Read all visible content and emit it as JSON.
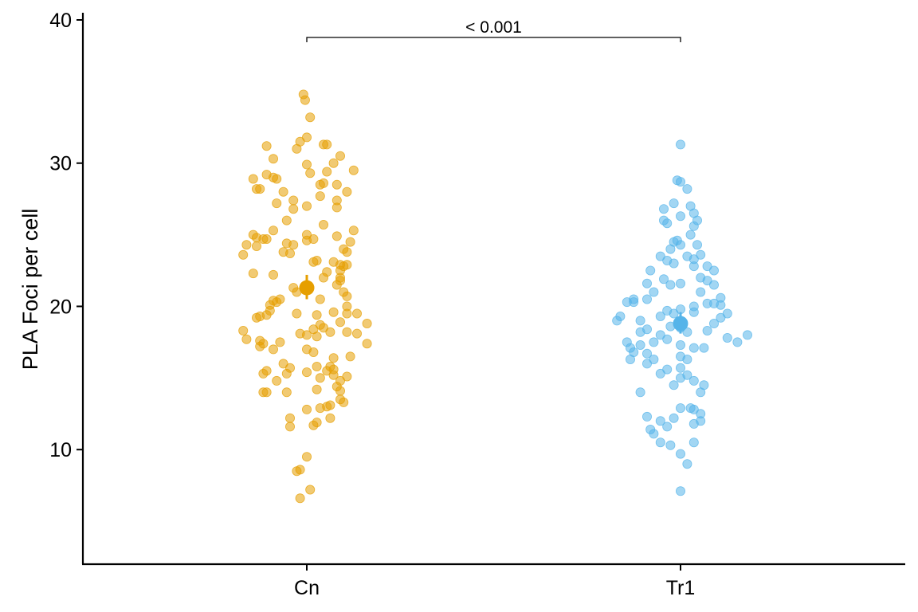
{
  "chart_data": {
    "type": "scatter",
    "subtype": "jitter-strip",
    "title": "",
    "xlabel": "",
    "ylabel": "PLA Foci per cell",
    "ylim": [
      2,
      40.5
    ],
    "yticks": [
      10,
      20,
      30,
      40
    ],
    "grid": false,
    "legend": "none",
    "categories": [
      "Cn",
      "Tr1"
    ],
    "series": [
      {
        "category": "Cn",
        "color": "#E69F00",
        "mean": 21.3,
        "ci": [
          20.5,
          22.2
        ],
        "points": [
          [
            -0.01,
            34.8
          ],
          [
            -0.005,
            34.4
          ],
          [
            0.01,
            33.2
          ],
          [
            -0.02,
            31.5
          ],
          [
            -0.03,
            31.0
          ],
          [
            0.0,
            31.8
          ],
          [
            -0.12,
            31.2
          ],
          [
            0.05,
            31.3
          ],
          [
            0.06,
            31.3
          ],
          [
            0.1,
            30.5
          ],
          [
            -0.1,
            30.3
          ],
          [
            0.08,
            30.0
          ],
          [
            0.14,
            29.5
          ],
          [
            0.0,
            29.9
          ],
          [
            0.01,
            29.3
          ],
          [
            -0.12,
            29.2
          ],
          [
            -0.09,
            28.9
          ],
          [
            -0.16,
            28.9
          ],
          [
            -0.1,
            29.0
          ],
          [
            0.06,
            29.4
          ],
          [
            0.05,
            28.6
          ],
          [
            0.04,
            28.5
          ],
          [
            0.09,
            28.5
          ],
          [
            -0.15,
            28.2
          ],
          [
            -0.14,
            28.2
          ],
          [
            -0.07,
            28.0
          ],
          [
            0.12,
            28.0
          ],
          [
            -0.04,
            27.4
          ],
          [
            0.04,
            27.7
          ],
          [
            0.09,
            27.4
          ],
          [
            -0.09,
            27.2
          ],
          [
            0.0,
            27.0
          ],
          [
            0.09,
            26.9
          ],
          [
            -0.04,
            26.8
          ],
          [
            -0.06,
            26.0
          ],
          [
            0.05,
            25.7
          ],
          [
            0.14,
            25.3
          ],
          [
            -0.1,
            25.3
          ],
          [
            0.0,
            25.0
          ],
          [
            -0.16,
            25.0
          ],
          [
            0.09,
            24.9
          ],
          [
            -0.15,
            24.8
          ],
          [
            -0.12,
            24.7
          ],
          [
            -0.13,
            24.7
          ],
          [
            0.02,
            24.7
          ],
          [
            0.0,
            24.6
          ],
          [
            -0.06,
            24.4
          ],
          [
            -0.04,
            24.3
          ],
          [
            0.13,
            24.5
          ],
          [
            -0.18,
            24.3
          ],
          [
            -0.15,
            24.2
          ],
          [
            0.11,
            24.0
          ],
          [
            0.12,
            23.8
          ],
          [
            -0.05,
            23.7
          ],
          [
            -0.07,
            23.8
          ],
          [
            -0.19,
            23.6
          ],
          [
            0.03,
            23.2
          ],
          [
            0.08,
            23.1
          ],
          [
            0.02,
            23.1
          ],
          [
            0.12,
            22.9
          ],
          [
            0.1,
            22.5
          ],
          [
            0.11,
            22.8
          ],
          [
            0.1,
            22.9
          ],
          [
            0.06,
            22.4
          ],
          [
            0.1,
            22.0
          ],
          [
            -0.16,
            22.3
          ],
          [
            -0.1,
            22.2
          ],
          [
            0.05,
            22.0
          ],
          [
            0.09,
            21.5
          ],
          [
            0.1,
            21.8
          ],
          [
            0.0,
            21.5
          ],
          [
            -0.04,
            21.3
          ],
          [
            -0.03,
            21.0
          ],
          [
            0.0,
            21.2
          ],
          [
            0.11,
            21.0
          ],
          [
            0.12,
            20.7
          ],
          [
            -0.08,
            20.5
          ],
          [
            -0.1,
            20.4
          ],
          [
            -0.09,
            20.3
          ],
          [
            0.04,
            20.5
          ],
          [
            -0.11,
            20.1
          ],
          [
            0.12,
            20.0
          ],
          [
            -0.11,
            19.7
          ],
          [
            0.12,
            19.5
          ],
          [
            0.15,
            19.5
          ],
          [
            0.08,
            19.6
          ],
          [
            0.03,
            19.4
          ],
          [
            -0.03,
            19.5
          ],
          [
            -0.14,
            19.3
          ],
          [
            -0.15,
            19.2
          ],
          [
            -0.12,
            19.4
          ],
          [
            0.18,
            18.8
          ],
          [
            0.1,
            18.9
          ],
          [
            0.04,
            18.7
          ],
          [
            0.05,
            18.5
          ],
          [
            0.02,
            18.4
          ],
          [
            0.12,
            18.2
          ],
          [
            0.15,
            18.1
          ],
          [
            0.07,
            18.2
          ],
          [
            -0.02,
            18.1
          ],
          [
            0.03,
            17.9
          ],
          [
            0.0,
            18.0
          ],
          [
            -0.19,
            18.3
          ],
          [
            -0.18,
            17.7
          ],
          [
            -0.14,
            17.6
          ],
          [
            -0.13,
            17.4
          ],
          [
            -0.08,
            17.5
          ],
          [
            -0.14,
            17.2
          ],
          [
            -0.1,
            17.0
          ],
          [
            0.18,
            17.4
          ],
          [
            0.0,
            17.0
          ],
          [
            0.02,
            16.8
          ],
          [
            0.13,
            16.5
          ],
          [
            0.08,
            16.4
          ],
          [
            -0.07,
            16.0
          ],
          [
            0.03,
            15.8
          ],
          [
            -0.05,
            15.7
          ],
          [
            0.07,
            15.8
          ],
          [
            0.08,
            15.6
          ],
          [
            0.06,
            15.5
          ],
          [
            -0.12,
            15.5
          ],
          [
            -0.13,
            15.3
          ],
          [
            -0.06,
            15.3
          ],
          [
            0.0,
            15.4
          ],
          [
            0.04,
            15.0
          ],
          [
            0.08,
            15.2
          ],
          [
            0.12,
            15.1
          ],
          [
            0.1,
            14.8
          ],
          [
            -0.09,
            14.8
          ],
          [
            0.09,
            14.4
          ],
          [
            0.1,
            14.1
          ],
          [
            0.03,
            14.2
          ],
          [
            -0.13,
            14.0
          ],
          [
            -0.12,
            14.0
          ],
          [
            -0.06,
            14.0
          ],
          [
            0.1,
            13.5
          ],
          [
            0.11,
            13.3
          ],
          [
            0.06,
            13.0
          ],
          [
            0.07,
            13.1
          ],
          [
            0.04,
            12.9
          ],
          [
            0.0,
            12.8
          ],
          [
            -0.05,
            12.2
          ],
          [
            0.07,
            12.2
          ],
          [
            0.03,
            11.9
          ],
          [
            0.02,
            11.7
          ],
          [
            -0.05,
            11.6
          ],
          [
            0.0,
            9.5
          ],
          [
            -0.02,
            8.6
          ],
          [
            -0.03,
            8.5
          ],
          [
            0.01,
            7.2
          ],
          [
            -0.02,
            6.6
          ]
        ]
      },
      {
        "category": "Tr1",
        "color": "#56B4E9",
        "mean": 18.8,
        "ci": [
          18.1,
          19.6
        ],
        "points": [
          [
            0.0,
            31.3
          ],
          [
            -0.01,
            28.8
          ],
          [
            0.0,
            28.7
          ],
          [
            0.02,
            28.2
          ],
          [
            -0.02,
            27.2
          ],
          [
            0.03,
            27.0
          ],
          [
            -0.05,
            26.8
          ],
          [
            0.04,
            26.5
          ],
          [
            0.0,
            26.3
          ],
          [
            -0.05,
            26.0
          ],
          [
            0.05,
            26.0
          ],
          [
            0.04,
            25.6
          ],
          [
            -0.04,
            25.8
          ],
          [
            0.03,
            25.0
          ],
          [
            -0.02,
            24.5
          ],
          [
            -0.01,
            24.6
          ],
          [
            0.05,
            24.3
          ],
          [
            0.0,
            24.3
          ],
          [
            -0.03,
            24.0
          ],
          [
            0.06,
            23.6
          ],
          [
            -0.06,
            23.5
          ],
          [
            0.02,
            23.5
          ],
          [
            0.04,
            23.3
          ],
          [
            -0.04,
            23.2
          ],
          [
            -0.02,
            23.0
          ],
          [
            0.08,
            22.8
          ],
          [
            0.04,
            22.8
          ],
          [
            0.1,
            22.5
          ],
          [
            -0.09,
            22.5
          ],
          [
            0.06,
            22.0
          ],
          [
            0.08,
            21.8
          ],
          [
            -0.05,
            21.9
          ],
          [
            -0.1,
            21.6
          ],
          [
            0.0,
            21.6
          ],
          [
            0.1,
            21.5
          ],
          [
            -0.03,
            21.5
          ],
          [
            0.06,
            21.0
          ],
          [
            -0.08,
            21.0
          ],
          [
            0.12,
            20.6
          ],
          [
            -0.1,
            20.5
          ],
          [
            -0.14,
            20.5
          ],
          [
            -0.16,
            20.3
          ],
          [
            -0.14,
            20.3
          ],
          [
            0.08,
            20.2
          ],
          [
            0.1,
            20.2
          ],
          [
            0.12,
            20.1
          ],
          [
            0.04,
            20.0
          ],
          [
            0.0,
            19.8
          ],
          [
            -0.04,
            19.7
          ],
          [
            -0.02,
            19.5
          ],
          [
            0.04,
            19.6
          ],
          [
            0.14,
            19.5
          ],
          [
            -0.06,
            19.3
          ],
          [
            -0.18,
            19.3
          ],
          [
            -0.19,
            19.0
          ],
          [
            0.12,
            19.2
          ],
          [
            -0.12,
            19.0
          ],
          [
            0.1,
            18.8
          ],
          [
            -0.03,
            18.6
          ],
          [
            0.0,
            18.5
          ],
          [
            -0.1,
            18.4
          ],
          [
            0.02,
            18.2
          ],
          [
            0.08,
            18.3
          ],
          [
            -0.12,
            18.2
          ],
          [
            0.2,
            18.0
          ],
          [
            0.14,
            17.8
          ],
          [
            -0.06,
            18.0
          ],
          [
            -0.04,
            17.7
          ],
          [
            -0.08,
            17.5
          ],
          [
            -0.16,
            17.5
          ],
          [
            0.17,
            17.5
          ],
          [
            0.0,
            17.3
          ],
          [
            0.04,
            17.1
          ],
          [
            -0.12,
            17.3
          ],
          [
            -0.15,
            17.1
          ],
          [
            0.07,
            17.1
          ],
          [
            -0.14,
            16.8
          ],
          [
            -0.1,
            16.7
          ],
          [
            -0.08,
            16.3
          ],
          [
            0.0,
            16.5
          ],
          [
            0.02,
            16.3
          ],
          [
            -0.15,
            16.3
          ],
          [
            -0.1,
            16.0
          ],
          [
            0.0,
            15.7
          ],
          [
            -0.04,
            15.6
          ],
          [
            -0.06,
            15.3
          ],
          [
            0.0,
            15.0
          ],
          [
            0.02,
            15.2
          ],
          [
            0.04,
            14.8
          ],
          [
            0.07,
            14.5
          ],
          [
            -0.02,
            14.5
          ],
          [
            0.06,
            14.0
          ],
          [
            -0.12,
            14.0
          ],
          [
            0.0,
            12.9
          ],
          [
            0.03,
            12.9
          ],
          [
            0.04,
            12.8
          ],
          [
            0.06,
            12.5
          ],
          [
            0.06,
            12.0
          ],
          [
            0.04,
            11.8
          ],
          [
            -0.06,
            12.0
          ],
          [
            -0.1,
            12.3
          ],
          [
            -0.02,
            12.2
          ],
          [
            -0.04,
            11.6
          ],
          [
            -0.09,
            11.4
          ],
          [
            -0.08,
            11.1
          ],
          [
            -0.06,
            10.5
          ],
          [
            0.04,
            10.5
          ],
          [
            -0.03,
            10.3
          ],
          [
            0.0,
            9.7
          ],
          [
            0.02,
            9.0
          ],
          [
            0.0,
            7.1
          ]
        ]
      }
    ],
    "comparison": {
      "groups": [
        "Cn",
        "Tr1"
      ],
      "label": "< 0.001"
    }
  }
}
